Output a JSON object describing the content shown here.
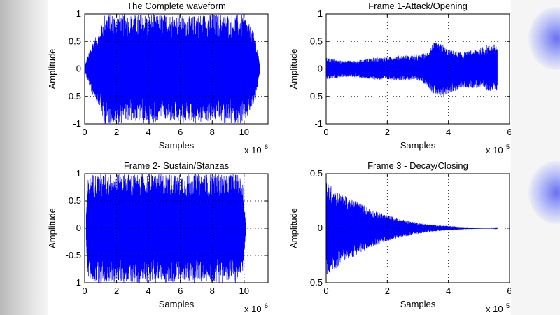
{
  "colors": {
    "line": "#0000ff",
    "axes": "#000000",
    "grid": "#000000"
  },
  "chart_data": [
    {
      "type": "line",
      "title": "The  Complete waveform",
      "xlabel": "Samples",
      "ylabel": "Amplitude",
      "xlim": [
        0,
        11.5
      ],
      "ylim": [
        -1,
        1
      ],
      "xticks": [
        0,
        2,
        4,
        6,
        8,
        10
      ],
      "yticks": [
        -1,
        -0.5,
        0,
        0.5,
        1
      ],
      "xtick_labels": [
        "0",
        "2",
        "4",
        "6",
        "8",
        "10"
      ],
      "ytick_labels": [
        "-1",
        "-0.5",
        "0",
        "0.5",
        "1"
      ],
      "x_exponent": {
        "base": "x 10",
        "power": "6"
      },
      "grid": true,
      "envelope": {
        "x": [
          0,
          0.5,
          1.0,
          1.2,
          2,
          3,
          4,
          5,
          6,
          6.7,
          7,
          8,
          9,
          10,
          10.7,
          11.0
        ],
        "upper": [
          0.05,
          0.5,
          0.7,
          1,
          1,
          1,
          1,
          1,
          1,
          0.95,
          1,
          1,
          1,
          1,
          0.6,
          0.05
        ],
        "lower": [
          -0.05,
          -0.5,
          -0.7,
          -1,
          -1,
          -0.95,
          -1,
          -0.95,
          -1,
          -0.95,
          -1,
          -0.95,
          -1,
          -1,
          -0.6,
          -0.05
        ]
      }
    },
    {
      "type": "line",
      "title": "Frame 1-Attack/Opening",
      "xlabel": "Samples",
      "ylabel": "Amplitude",
      "xlim": [
        0,
        6
      ],
      "ylim": [
        -1,
        1
      ],
      "xticks": [
        0,
        2,
        4,
        6
      ],
      "yticks": [
        -1,
        -0.5,
        0,
        0.5,
        1
      ],
      "xtick_labels": [
        "0",
        "2",
        "4",
        "6"
      ],
      "ytick_labels": [
        "-1",
        "-0.5",
        "0",
        "0.5",
        "1"
      ],
      "x_exponent": {
        "base": "x 10",
        "power": "5"
      },
      "grid": true,
      "envelope": {
        "x": [
          0.02,
          0.5,
          1.0,
          1.5,
          2.0,
          2.5,
          3.0,
          3.3,
          3.5,
          3.8,
          4.0,
          4.5,
          5.0,
          5.3,
          5.5,
          5.6
        ],
        "upper": [
          0.2,
          0.15,
          0.15,
          0.2,
          0.22,
          0.25,
          0.25,
          0.3,
          0.48,
          0.45,
          0.35,
          0.3,
          0.38,
          0.45,
          0.45,
          0.45
        ],
        "lower": [
          -0.2,
          -0.15,
          -0.15,
          -0.2,
          -0.2,
          -0.2,
          -0.2,
          -0.3,
          -0.45,
          -0.55,
          -0.45,
          -0.35,
          -0.35,
          -0.4,
          -0.4,
          -0.4
        ]
      }
    },
    {
      "type": "line",
      "title": "Frame 2- Sustain/Stanzas",
      "xlabel": "Samples",
      "ylabel": "Amplitude",
      "xlim": [
        0,
        11.5
      ],
      "ylim": [
        -1,
        1
      ],
      "xticks": [
        0,
        2,
        4,
        6,
        8,
        10
      ],
      "yticks": [
        -1,
        -0.5,
        0,
        0.5,
        1
      ],
      "xtick_labels": [
        "0",
        "2",
        "4",
        "6",
        "8",
        "10"
      ],
      "ytick_labels": [
        "-1",
        "-0.5",
        "0",
        "0.5",
        "1"
      ],
      "x_exponent": {
        "base": "x 10",
        "power": "6"
      },
      "grid": true,
      "envelope": {
        "x": [
          0.1,
          0.2,
          0.5,
          1,
          2,
          3,
          4,
          5,
          6,
          7,
          8,
          9,
          9.5,
          9.9,
          10.1
        ],
        "upper": [
          0.3,
          0.9,
          1,
          1,
          1,
          1,
          1,
          1,
          1,
          1,
          1,
          1,
          1,
          0.9,
          0.1
        ],
        "lower": [
          -0.3,
          -0.9,
          -1,
          -1,
          -1,
          -1,
          -1,
          -1,
          -1,
          -1,
          -1,
          -1,
          -1,
          -0.9,
          -0.1
        ]
      }
    },
    {
      "type": "line",
      "title": "Frame 3 - Decay/Closing",
      "xlabel": "Samples",
      "ylabel": "Amplitude",
      "xlim": [
        0,
        6
      ],
      "ylim": [
        -0.5,
        0.5
      ],
      "xticks": [
        0,
        2,
        4,
        6
      ],
      "yticks": [
        -0.5,
        0,
        0.5
      ],
      "xtick_labels": [
        "0",
        "2",
        "4",
        "6"
      ],
      "ytick_labels": [
        "-0.5",
        "0",
        "0.5"
      ],
      "x_exponent": {
        "base": "x 10",
        "power": "5"
      },
      "grid": true,
      "envelope": {
        "x": [
          0,
          0.3,
          0.6,
          1.0,
          1.5,
          2.0,
          2.5,
          3.0,
          3.5,
          4.0,
          4.5,
          5.0,
          5.6
        ],
        "upper": [
          0.45,
          0.35,
          0.3,
          0.25,
          0.17,
          0.12,
          0.08,
          0.05,
          0.03,
          0.02,
          0.01,
          0.005,
          0.002
        ],
        "lower": [
          -0.45,
          -0.38,
          -0.3,
          -0.25,
          -0.17,
          -0.12,
          -0.08,
          -0.05,
          -0.03,
          -0.02,
          -0.01,
          -0.005,
          -0.002
        ]
      }
    }
  ]
}
